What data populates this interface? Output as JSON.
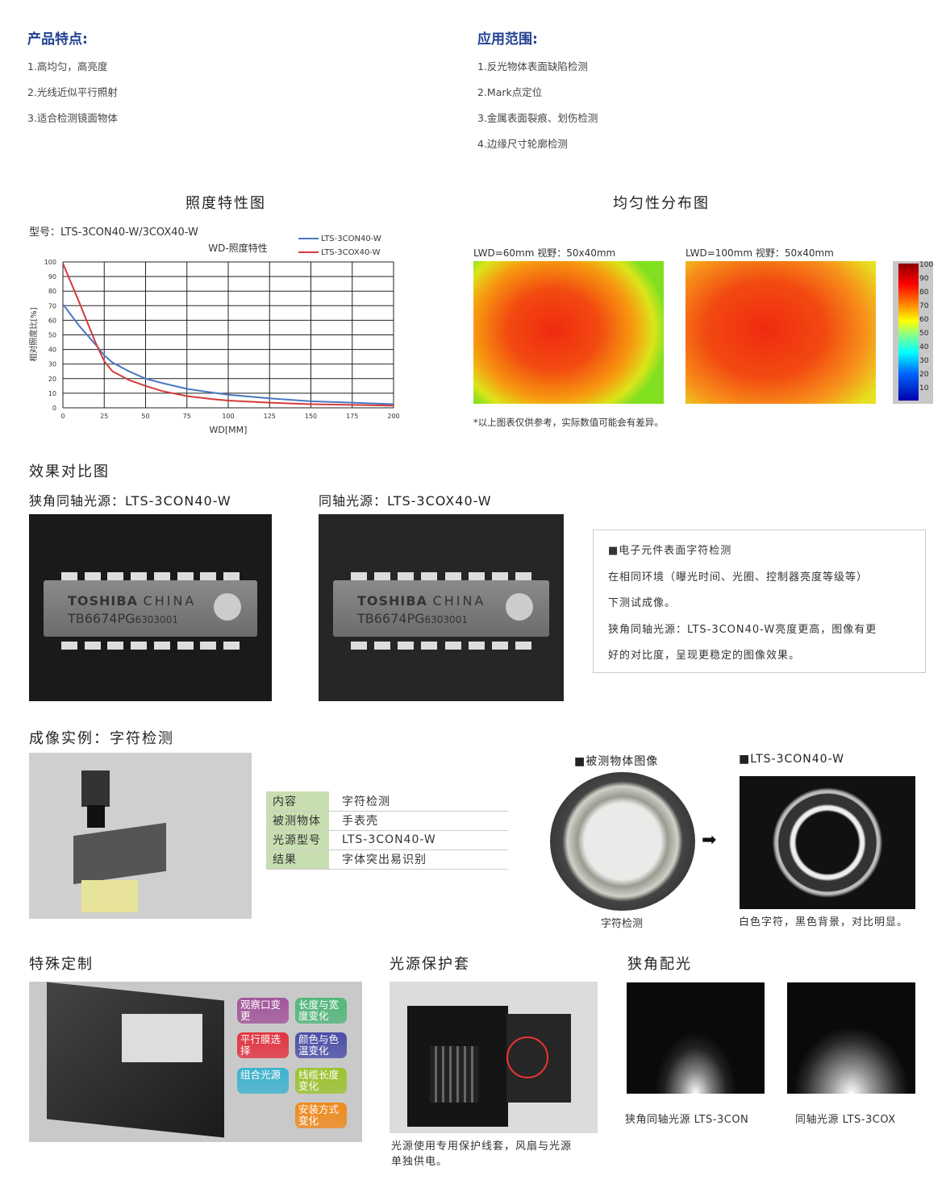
{
  "features": {
    "title": "产品特点:",
    "items": [
      "1.高均匀，高亮度",
      "2.光线近似平行照射",
      "3.适合检测镜面物体"
    ]
  },
  "applications": {
    "title": "应用范围:",
    "items": [
      "1.反光物体表面缺陷检测",
      "2.Mark点定位",
      "3.金属表面裂痕、划伤检测",
      "4.边缘尺寸轮廓检测"
    ]
  },
  "illum": {
    "section_title": "照度特性图",
    "model": "型号：LTS-3CON40-W/3COX40-W"
  },
  "chart_data": {
    "type": "line",
    "title": "WD-照度特性",
    "xlabel": "WD[MM]",
    "ylabel": "相对照度比[%]",
    "xlim": [
      0,
      200
    ],
    "ylim": [
      0,
      100
    ],
    "grid": true,
    "legend": "top-right",
    "xticks": [
      0,
      25,
      50,
      75,
      100,
      125,
      150,
      175,
      200
    ],
    "yticks": [
      0,
      10,
      20,
      30,
      40,
      50,
      60,
      70,
      80,
      90,
      100
    ],
    "x": [
      0,
      10,
      20,
      25,
      30,
      40,
      50,
      60,
      75,
      90,
      100,
      125,
      150,
      175,
      200
    ],
    "series": [
      {
        "name": "LTS-3CON40-W",
        "color": "#4a78c2",
        "values": [
          71,
          56,
          43,
          36,
          31,
          25,
          20,
          17,
          13,
          10.5,
          9,
          6.5,
          4.5,
          3.5,
          2.5
        ]
      },
      {
        "name": "LTS-3COX40-W",
        "color": "#d43b3b",
        "values": [
          99,
          72,
          44,
          32,
          25,
          19,
          15,
          11.5,
          8,
          6,
          5,
          3.5,
          2.5,
          2,
          1.5
        ]
      }
    ]
  },
  "uniform": {
    "section_title": "均匀性分布图",
    "map1_label": "LWD=60mm  视野：50x40mm",
    "map2_label": "LWD=100mm  视野：50x40mm",
    "colorbar_ticks": [
      "100",
      "90",
      "80",
      "70",
      "60",
      "50",
      "40",
      "30",
      "20",
      "10"
    ],
    "note": "*以上图表仅供参考，实际数值可能会有差异。"
  },
  "compare": {
    "section_title": "效果对比图",
    "left_label": "狭角同轴光源：LTS-3CON40-W",
    "right_label": "同轴光源：LTS-3COX40-W",
    "chip_brand": "TOSHIBA",
    "chip_origin": "CHINA",
    "chip_part": "TB6674PG",
    "chip_code": "6303001",
    "desc": [
      "■电子元件表面字符检测",
      "在相同环境（曝光时间、光圈、控制器亮度等级等）",
      "下测试成像。",
      "狭角同轴光源：LTS-3CON40-W亮度更高，图像有更",
      "好的对比度，呈现更稳定的图像效果。"
    ]
  },
  "example": {
    "section_title": "成像实例：字符检测",
    "table": [
      [
        "内容",
        "字符检测"
      ],
      [
        "被测物体",
        "手表壳"
      ],
      [
        "光源型号",
        "LTS-3CON40-W"
      ],
      [
        "结果",
        "字体突出易识别"
      ]
    ],
    "obj_title": "■被测物体图像",
    "obj_caption": "字符检测",
    "res_title": "■LTS-3CON40-W",
    "res_caption": "白色字符，黑色背景，对比明显。"
  },
  "custom": {
    "section_title": "特殊定制",
    "tags": [
      {
        "text": "观察口变更",
        "color": "#a2559b"
      },
      {
        "text": "长度与宽度变化",
        "color": "#52b77a"
      },
      {
        "text": "平行膜选择",
        "color": "#e2333f"
      },
      {
        "text": "颜色与色温变化",
        "color": "#4a4ea6"
      },
      {
        "text": "组合光源",
        "color": "#3db3cf"
      },
      {
        "text": "线缆长度变化",
        "color": "#9cc32e"
      },
      {
        "text": "安装方式变化",
        "color": "#f08a1c"
      }
    ]
  },
  "cover": {
    "section_title": "光源保护套",
    "caption": [
      "光源使用专用保护线套，风扇与光源",
      "单独供电。"
    ]
  },
  "narrow": {
    "section_title": "狭角配光",
    "left_caption": "狭角同轴光源 LTS-3CON",
    "right_caption": "同轴光源 LTS-3COX"
  }
}
